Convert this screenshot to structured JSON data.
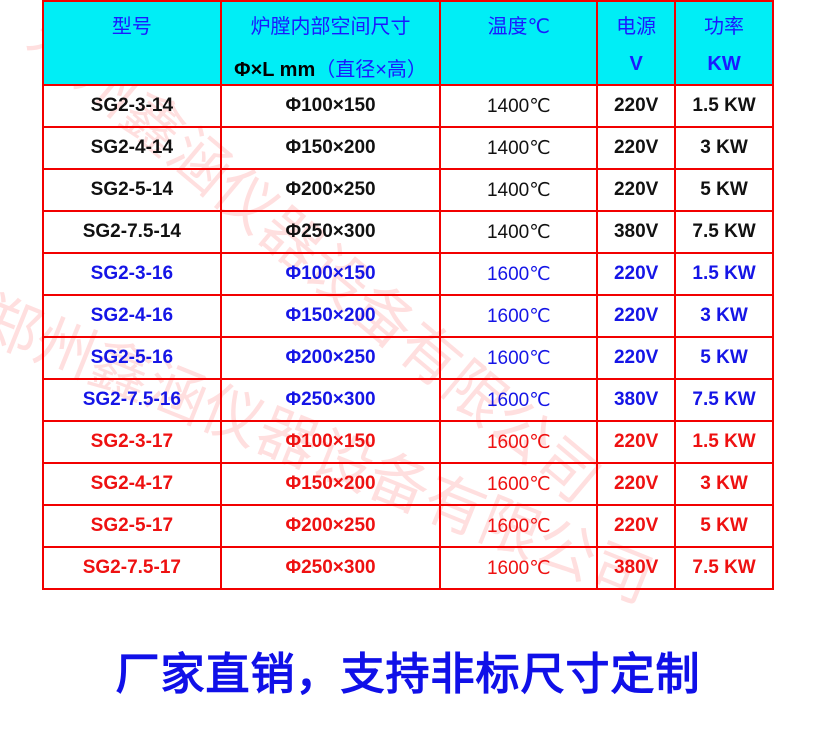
{
  "header": {
    "model": "型号",
    "size_line1": "炉膛内部空间尺寸",
    "size_line2_a": "Φ×L mm",
    "size_line2_b": "（直径×高）",
    "temp": "温度℃",
    "power_src_line1": "电源",
    "power_src_line2": "V",
    "power_line1": "功率",
    "power_line2": "KW"
  },
  "rows": [
    {
      "model": "SG2-3-14",
      "size": "Φ100×150",
      "temp": "1400℃",
      "volt": "220V",
      "power": "1.5 KW",
      "color": "black"
    },
    {
      "model": "SG2-4-14",
      "size": "Φ150×200",
      "temp": "1400℃",
      "volt": "220V",
      "power": "3 KW",
      "color": "black"
    },
    {
      "model": "SG2-5-14",
      "size": "Φ200×250",
      "temp": "1400℃",
      "volt": "220V",
      "power": "5 KW",
      "color": "black"
    },
    {
      "model": "SG2-7.5-14",
      "size": "Φ250×300",
      "temp": "1400℃",
      "volt": "380V",
      "power": "7.5 KW",
      "color": "black"
    },
    {
      "model": "SG2-3-16",
      "size": "Φ100×150",
      "temp": "1600℃",
      "volt": "220V",
      "power": "1.5 KW",
      "color": "blue"
    },
    {
      "model": "SG2-4-16",
      "size": "Φ150×200",
      "temp": "1600℃",
      "volt": "220V",
      "power": "3 KW",
      "color": "blue"
    },
    {
      "model": "SG2-5-16",
      "size": "Φ200×250",
      "temp": "1600℃",
      "volt": "220V",
      "power": "5 KW",
      "color": "blue"
    },
    {
      "model": "SG2-7.5-16",
      "size": "Φ250×300",
      "temp": "1600℃",
      "volt": "380V",
      "power": "7.5 KW",
      "color": "blue"
    },
    {
      "model": "SG2-3-17",
      "size": "Φ100×150",
      "temp": "1600℃",
      "volt": "220V",
      "power": "1.5 KW",
      "color": "red"
    },
    {
      "model": "SG2-4-17",
      "size": "Φ150×200",
      "temp": "1600℃",
      "volt": "220V",
      "power": "3 KW",
      "color": "red"
    },
    {
      "model": "SG2-5-17",
      "size": "Φ200×250",
      "temp": "1600℃",
      "volt": "220V",
      "power": "5 KW",
      "color": "red"
    },
    {
      "model": "SG2-7.5-17",
      "size": "Φ250×300",
      "temp": "1600℃",
      "volt": "380V",
      "power": "7.5 KW",
      "color": "red"
    }
  ],
  "footer": "厂家直销，支持非标尺寸定制",
  "watermark": "郑州鑫涵仪器设备有限公司",
  "colors": {
    "header_bg": "#00eef6",
    "border": "#f20000",
    "header_text": "#1a1aff",
    "footer_text": "#1010e8"
  }
}
